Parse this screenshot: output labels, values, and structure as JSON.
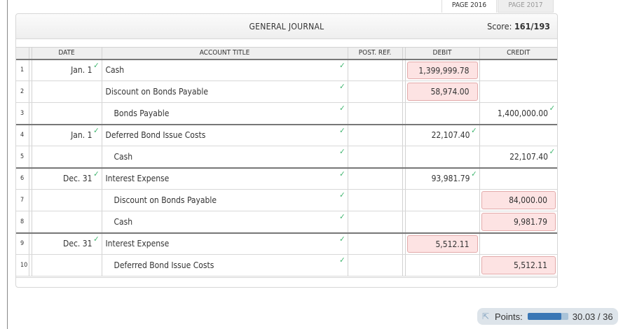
{
  "tabs": [
    {
      "label": "PAGE 2016",
      "active": true
    },
    {
      "label": "PAGE 2017",
      "active": false
    }
  ],
  "panel": {
    "title": "GENERAL JOURNAL",
    "score_label": "Score:",
    "score_value": "161/193"
  },
  "columns": {
    "date": "DATE",
    "account": "ACCOUNT TITLE",
    "postref": "POST. REF.",
    "debit": "DEBIT",
    "credit": "CREDIT"
  },
  "rows": [
    {
      "num": "1",
      "date": "Jan. 1",
      "date_check": true,
      "account": "Cash",
      "indent": false,
      "account_check": true,
      "postref": "",
      "debit": "1,399,999.78",
      "debit_state": "wrong",
      "credit": "",
      "credit_state": ""
    },
    {
      "num": "2",
      "date": "",
      "date_check": false,
      "account": "Discount on Bonds Payable",
      "indent": false,
      "account_check": true,
      "postref": "",
      "debit": "58,974.00",
      "debit_state": "wrong",
      "credit": "",
      "credit_state": ""
    },
    {
      "num": "3",
      "date": "",
      "date_check": false,
      "account": "Bonds Payable",
      "indent": true,
      "account_check": true,
      "postref": "",
      "debit": "",
      "debit_state": "",
      "credit": "1,400,000.00",
      "credit_state": "correct"
    },
    {
      "num": "4",
      "date": "Jan. 1",
      "date_check": true,
      "account": "Deferred Bond Issue Costs",
      "indent": false,
      "account_check": true,
      "postref": "",
      "debit": "22,107.40",
      "debit_state": "correct",
      "credit": "",
      "credit_state": ""
    },
    {
      "num": "5",
      "date": "",
      "date_check": false,
      "account": "Cash",
      "indent": true,
      "account_check": true,
      "postref": "",
      "debit": "",
      "debit_state": "",
      "credit": "22,107.40",
      "credit_state": "correct"
    },
    {
      "num": "6",
      "date": "Dec. 31",
      "date_check": true,
      "account": "Interest Expense",
      "indent": false,
      "account_check": true,
      "postref": "",
      "debit": "93,981.79",
      "debit_state": "correct",
      "credit": "",
      "credit_state": ""
    },
    {
      "num": "7",
      "date": "",
      "date_check": false,
      "account": "Discount on Bonds Payable",
      "indent": true,
      "account_check": true,
      "postref": "",
      "debit": "",
      "debit_state": "",
      "credit": "84,000.00",
      "credit_state": "wrong"
    },
    {
      "num": "8",
      "date": "",
      "date_check": false,
      "account": "Cash",
      "indent": true,
      "account_check": true,
      "postref": "",
      "debit": "",
      "debit_state": "",
      "credit": "9,981.79",
      "credit_state": "wrong"
    },
    {
      "num": "9",
      "date": "Dec. 31",
      "date_check": true,
      "account": "Interest Expense",
      "indent": false,
      "account_check": true,
      "postref": "",
      "debit": "5,512.11",
      "debit_state": "wrong",
      "credit": "",
      "credit_state": ""
    },
    {
      "num": "10",
      "date": "",
      "date_check": false,
      "account": "Deferred Bond Issue Costs",
      "indent": true,
      "account_check": true,
      "postref": "",
      "debit": "",
      "debit_state": "",
      "credit": "5,512.11",
      "credit_state": "wrong"
    }
  ],
  "points": {
    "label": "Points:",
    "value": "30.03 / 36",
    "progress_pct": 83.4,
    "icon": "arrow-up-left-icon"
  },
  "colors": {
    "check": "#3bb36b",
    "wrong_bg": "#fde3e3",
    "progress": "#3a77b5"
  }
}
